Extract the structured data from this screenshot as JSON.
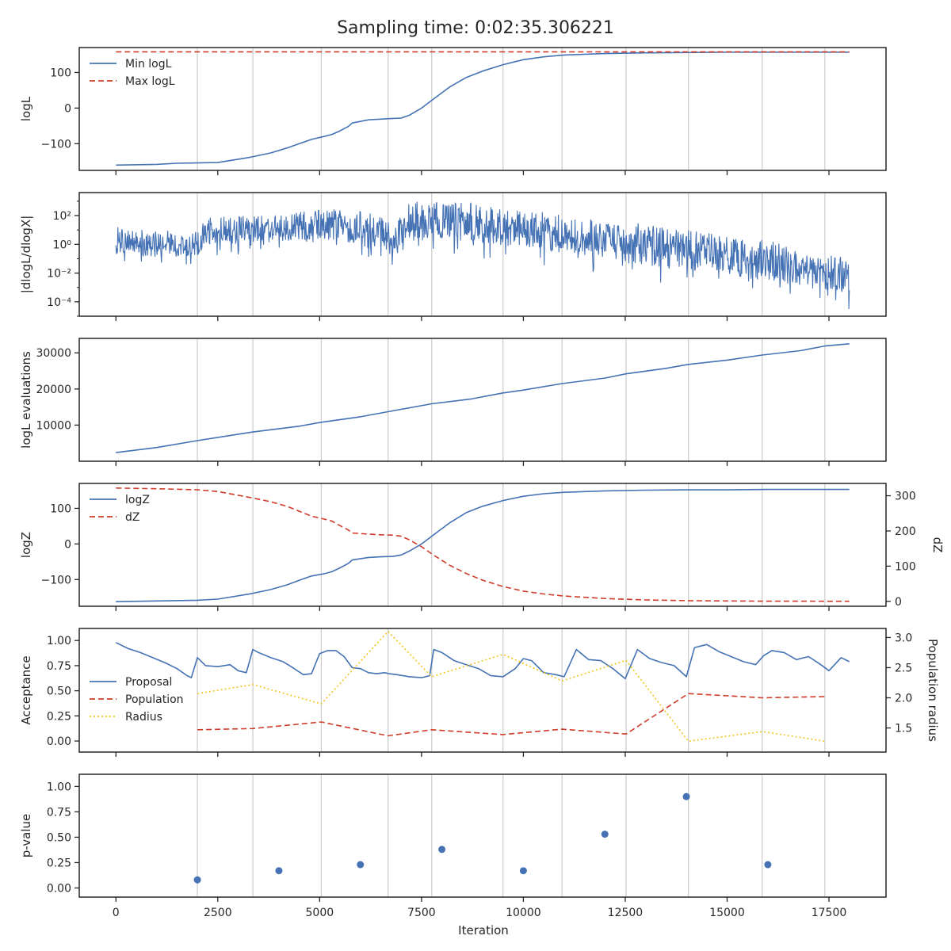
{
  "title": "Sampling time: 0:02:35.306221",
  "x_axis": {
    "label": "Iteration",
    "ticks": [
      0,
      2500,
      5000,
      7500,
      10000,
      12500,
      15000,
      17500
    ],
    "tick_labels": [
      "0",
      "2500",
      "5000",
      "7500",
      "10000",
      "12500",
      "15000",
      "17500"
    ],
    "xlim": [
      -900,
      18900
    ]
  },
  "vertical_gridlines": [
    2000,
    3360,
    5040,
    6680,
    7750,
    9500,
    10950,
    12520,
    14050,
    15860,
    17400
  ],
  "colors": {
    "blue": "#4472b4",
    "red": "#d03b2a",
    "yellow": "#f0c419",
    "grid": "#cfcfcf",
    "axis": "#262626"
  },
  "chart_data": [
    {
      "type": "line",
      "ylabel": "logL",
      "ylim": [
        -175,
        170
      ],
      "yticks": [
        -100,
        0,
        100
      ],
      "ytick_labels": [
        "−100",
        "0",
        "100"
      ],
      "legend": {
        "placement": "top-left"
      },
      "series": [
        {
          "name": "Min logL",
          "color": "#4472b4",
          "style": "solid",
          "x": [
            0,
            1000,
            1500,
            2500,
            3300,
            3800,
            4200,
            4500,
            4800,
            5100,
            5300,
            5500,
            5700,
            5800,
            6200,
            6500,
            6800,
            7000,
            7200,
            7500,
            7800,
            8200,
            8600,
            9000,
            9500,
            10000,
            10500,
            11000,
            12000,
            13000,
            14000,
            15000,
            16000,
            17000,
            18000
          ],
          "y": [
            -160,
            -158,
            -155,
            -153,
            -138,
            -126,
            -112,
            -100,
            -88,
            -80,
            -74,
            -64,
            -52,
            -42,
            -33,
            -31,
            -29,
            -28,
            -20,
            0,
            26,
            60,
            86,
            104,
            122,
            136,
            144,
            149,
            153,
            155,
            156,
            157,
            157,
            157,
            157
          ]
        },
        {
          "name": "Max logL",
          "color": "#d03b2a",
          "style": "dashed",
          "x": [
            0,
            18000
          ],
          "y": [
            158,
            158
          ]
        }
      ]
    },
    {
      "type": "line",
      "ylabel": "|dlogL/dlogX|",
      "yscale": "log",
      "ylim_log10": [
        -5.0,
        3.6
      ],
      "yticks_log10": [
        -4,
        -2,
        0,
        2
      ],
      "ytick_labels": [
        "10⁻⁴",
        "10⁻²",
        "10⁰",
        "10²"
      ],
      "legend": null,
      "series": [
        {
          "name": "",
          "color": "#4472b4",
          "style": "solid",
          "representation": "dense noisy trace",
          "x": [
            0,
            1000,
            2000,
            2300,
            3400,
            4400,
            5500,
            6600,
            6800,
            7200,
            8000,
            9000,
            10000,
            11000,
            12000,
            13000,
            14000,
            15000,
            16000,
            17000,
            18000
          ],
          "y_upper_log10": [
            1.2,
            0.9,
            1.1,
            1.9,
            2.0,
            2.3,
            2.5,
            2.0,
            1.0,
            3.0,
            3.0,
            2.8,
            2.4,
            2.1,
            1.8,
            1.4,
            1.0,
            0.6,
            0.3,
            -0.6,
            -0.9
          ],
          "y_center_log10": [
            0.2,
            -0.1,
            0.1,
            0.9,
            1.0,
            1.2,
            1.4,
            0.8,
            0.0,
            1.8,
            1.7,
            1.5,
            1.1,
            0.8,
            0.4,
            0.0,
            -0.4,
            -0.8,
            -1.1,
            -1.7,
            -2.1
          ],
          "y_lower_log10": [
            -1.4,
            -1.6,
            -1.5,
            -0.8,
            -0.7,
            -0.6,
            -0.5,
            -2.0,
            -1.5,
            -0.6,
            -0.8,
            -1.0,
            -1.4,
            -1.8,
            -2.2,
            -2.6,
            -3.0,
            -3.3,
            -3.6,
            -4.2,
            -4.6
          ]
        }
      ]
    },
    {
      "type": "line",
      "ylabel": "logL evaluations",
      "ylim": [
        0,
        34000
      ],
      "yticks": [
        10000,
        20000,
        30000
      ],
      "ytick_labels": [
        "10000",
        "20000",
        "30000"
      ],
      "legend": null,
      "series": [
        {
          "name": "",
          "color": "#4472b4",
          "style": "solid",
          "x": [
            0,
            1000,
            2000,
            3360,
            4500,
            5040,
            6000,
            6680,
            7750,
            8700,
            9500,
            10000,
            10950,
            12000,
            12520,
            13500,
            14050,
            15000,
            15860,
            16800,
            17400,
            18000
          ],
          "y": [
            2400,
            3800,
            5700,
            8100,
            9700,
            10800,
            12300,
            13700,
            15900,
            17200,
            18900,
            19700,
            21500,
            23000,
            24200,
            25700,
            26800,
            28000,
            29400,
            30600,
            31900,
            32500
          ]
        }
      ]
    },
    {
      "type": "line",
      "ylabel": "logZ",
      "ylabel_right": "dZ",
      "ylim": [
        -175,
        170
      ],
      "yticks": [
        -100,
        0,
        100
      ],
      "ytick_labels": [
        "−100",
        "0",
        "100"
      ],
      "ylim_right": [
        -14,
        335
      ],
      "yticks_right": [
        0,
        100,
        200,
        300
      ],
      "ytick_labels_right": [
        "0",
        "100",
        "200",
        "300"
      ],
      "legend": {
        "placement": "top-left"
      },
      "series": [
        {
          "name": "logZ",
          "axis": "left",
          "color": "#4472b4",
          "style": "solid",
          "x": [
            0,
            1000,
            2000,
            2500,
            3300,
            3800,
            4200,
            4500,
            4800,
            5100,
            5300,
            5500,
            5700,
            5800,
            6200,
            6500,
            6800,
            7000,
            7200,
            7500,
            7800,
            8200,
            8600,
            9000,
            9500,
            10000,
            10500,
            11000,
            12000,
            13000,
            14000,
            15000,
            16000,
            17000,
            18000
          ],
          "y": [
            -162,
            -160,
            -158,
            -155,
            -140,
            -128,
            -115,
            -102,
            -90,
            -84,
            -78,
            -67,
            -55,
            -45,
            -38,
            -36,
            -35,
            -31,
            -20,
            0,
            26,
            60,
            88,
            106,
            122,
            134,
            141,
            145,
            149,
            151,
            152,
            152,
            153,
            153,
            153
          ]
        },
        {
          "name": "dZ",
          "axis": "right",
          "color": "#d03b2a",
          "style": "dashed",
          "x": [
            0,
            1000,
            2000,
            2500,
            3300,
            3800,
            4200,
            4500,
            4800,
            5100,
            5300,
            5500,
            5700,
            5800,
            6200,
            6500,
            6800,
            7000,
            7200,
            7500,
            7800,
            8200,
            8600,
            9000,
            9500,
            10000,
            10500,
            11000,
            12000,
            13000,
            14000,
            15000,
            16000,
            17000,
            18000
          ],
          "y": [
            322,
            320,
            317,
            312,
            295,
            283,
            270,
            256,
            242,
            234,
            228,
            215,
            203,
            194,
            191,
            189,
            188,
            185,
            175,
            155,
            131,
            102,
            79,
            60,
            42,
            29,
            21,
            15,
            8,
            4,
            2,
            1,
            0.5,
            0.3,
            0.2
          ]
        }
      ]
    },
    {
      "type": "line",
      "ylabel": "Acceptance",
      "ylabel_right": "Population radius",
      "ylim": [
        -0.11,
        1.12
      ],
      "yticks": [
        0.0,
        0.25,
        0.5,
        0.75,
        1.0
      ],
      "ytick_labels": [
        "0.00",
        "0.25",
        "0.50",
        "0.75",
        "1.00"
      ],
      "ylim_right": [
        1.1,
        3.15
      ],
      "yticks_right": [
        1.5,
        2.0,
        2.5,
        3.0
      ],
      "ytick_labels_right": [
        "1.5",
        "2.0",
        "2.5",
        "3.0"
      ],
      "legend": {
        "placement": "lower-left"
      },
      "series": [
        {
          "name": "Proposal",
          "axis": "left",
          "color": "#4472b4",
          "style": "solid",
          "x": [
            0,
            300,
            600,
            900,
            1200,
            1500,
            1750,
            1850,
            2000,
            2200,
            2500,
            2800,
            3000,
            3200,
            3360,
            3500,
            3800,
            4100,
            4300,
            4600,
            4800,
            5000,
            5200,
            5400,
            5600,
            5800,
            6000,
            6200,
            6400,
            6600,
            6700,
            6900,
            7200,
            7500,
            7700,
            7800,
            8000,
            8300,
            8600,
            8900,
            9200,
            9500,
            9800,
            10000,
            10200,
            10500,
            10800,
            11000,
            11300,
            11600,
            11900,
            12200,
            12500,
            12800,
            13100,
            13400,
            13700,
            14000,
            14200,
            14500,
            14800,
            15100,
            15400,
            15700,
            15900,
            16100,
            16400,
            16700,
            17000,
            17300,
            17500,
            17800,
            18000
          ],
          "y": [
            0.98,
            0.92,
            0.88,
            0.83,
            0.78,
            0.72,
            0.65,
            0.63,
            0.83,
            0.75,
            0.74,
            0.76,
            0.7,
            0.68,
            0.91,
            0.88,
            0.83,
            0.79,
            0.74,
            0.66,
            0.67,
            0.87,
            0.9,
            0.9,
            0.84,
            0.73,
            0.72,
            0.68,
            0.67,
            0.68,
            0.67,
            0.66,
            0.64,
            0.63,
            0.65,
            0.91,
            0.88,
            0.8,
            0.76,
            0.72,
            0.65,
            0.64,
            0.72,
            0.82,
            0.8,
            0.68,
            0.66,
            0.64,
            0.91,
            0.81,
            0.8,
            0.72,
            0.62,
            0.91,
            0.82,
            0.78,
            0.75,
            0.64,
            0.93,
            0.96,
            0.89,
            0.84,
            0.79,
            0.76,
            0.85,
            0.9,
            0.88,
            0.81,
            0.84,
            0.76,
            0.7,
            0.83,
            0.79
          ]
        },
        {
          "name": "Population",
          "axis": "right",
          "color": "#d03b2a",
          "style": "dashed",
          "x": [
            2000,
            3360,
            5040,
            6680,
            7750,
            9500,
            10950,
            12520,
            14050,
            15860,
            17400
          ],
          "y": [
            1.47,
            1.49,
            1.6,
            1.37,
            1.47,
            1.39,
            1.48,
            1.4,
            2.07,
            2.0,
            2.02
          ]
        },
        {
          "name": "Radius",
          "axis": "right",
          "color": "#f0c419",
          "style": "dotted",
          "x": [
            2000,
            3360,
            5040,
            6680,
            7750,
            9500,
            10950,
            12520,
            14050,
            15860,
            17400
          ],
          "y": [
            2.07,
            2.22,
            1.9,
            3.1,
            2.35,
            2.72,
            2.28,
            2.62,
            1.28,
            1.44,
            1.28
          ]
        }
      ]
    },
    {
      "type": "scatter",
      "ylabel": "p-value",
      "ylim": [
        -0.09,
        1.12
      ],
      "yticks": [
        0.0,
        0.25,
        0.5,
        0.75,
        1.0
      ],
      "ytick_labels": [
        "0.00",
        "0.25",
        "0.50",
        "0.75",
        "1.00"
      ],
      "legend": null,
      "series": [
        {
          "name": "",
          "color": "#4472b4",
          "x": [
            2000,
            4000,
            6000,
            8000,
            10000,
            12000,
            14000,
            16000
          ],
          "y": [
            0.08,
            0.17,
            0.23,
            0.38,
            0.17,
            0.53,
            0.9,
            0.23
          ]
        }
      ]
    }
  ]
}
